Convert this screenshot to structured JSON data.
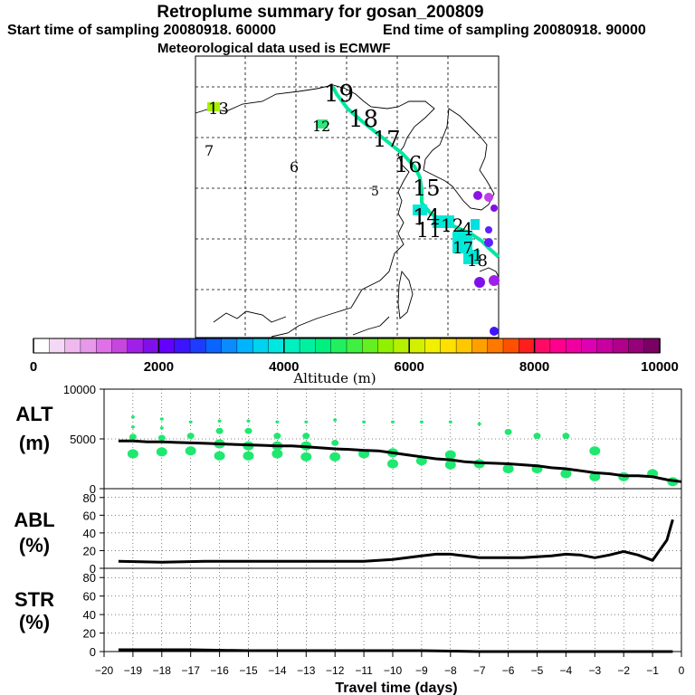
{
  "header": {
    "title": "Retroplume summary for gosan_200809",
    "start_label": "Start time of sampling 20080918. 60000",
    "end_label": "End time of sampling 20080918. 90000",
    "met_label": "Meteorological data used is ECMWF"
  },
  "colors": {
    "plume_green": "#1ee870",
    "trajectory": "#00e8a0",
    "line": "#000000"
  },
  "map": {
    "day_labels": [
      {
        "text": "19",
        "color": "#000000"
      },
      {
        "text": "18",
        "color": "#000000"
      },
      {
        "text": "17",
        "color": "#000000"
      },
      {
        "text": "16",
        "color": "#000000"
      },
      {
        "text": "15",
        "color": "#000000"
      },
      {
        "text": "14",
        "color": "#000000"
      },
      {
        "text": "11",
        "color": "#000000"
      },
      {
        "text": "12",
        "color": "#000000"
      },
      {
        "text": "4",
        "color": "#000000"
      },
      {
        "text": "1",
        "color": "#000000"
      },
      {
        "text": "17",
        "color": "#000000"
      },
      {
        "text": "18",
        "color": "#000000"
      },
      {
        "text": "13",
        "color": "#000000"
      },
      {
        "text": "12",
        "color": "#000000"
      },
      {
        "text": "7",
        "color": "#000000"
      },
      {
        "text": "6",
        "color": "#000000"
      },
      {
        "text": "5",
        "color": "#000000"
      }
    ]
  },
  "colorbar": {
    "tick_labels": [
      "0",
      "2000",
      "4000",
      "6000",
      "8000",
      "10000"
    ],
    "label": "Altitude (m)",
    "colors": [
      "#ffffff",
      "#f5d8f5",
      "#efb8ef",
      "#e898e8",
      "#e070e8",
      "#c846e0",
      "#a020e8",
      "#8010e8",
      "#6400ff",
      "#3c14ff",
      "#1e3cff",
      "#0a64ff",
      "#0a8cff",
      "#00b4ff",
      "#00d2f0",
      "#00e6e0",
      "#00f0c0",
      "#00f0a0",
      "#00f080",
      "#20f060",
      "#40f040",
      "#64f020",
      "#90f000",
      "#b4f000",
      "#d2f000",
      "#f0f000",
      "#ffe000",
      "#ffc800",
      "#ffa000",
      "#ff7800",
      "#ff5000",
      "#ff1e1e",
      "#ff0a64",
      "#ff008c",
      "#f000a0",
      "#e000b4",
      "#c800a0",
      "#b0008c",
      "#960078",
      "#7a0064"
    ]
  },
  "chart_data": [
    {
      "type": "line",
      "name": "ALT",
      "ylabel": [
        "ALT",
        "(m)"
      ],
      "ylim": [
        0,
        10000
      ],
      "yticks": [
        "10000",
        "5000",
        "0"
      ],
      "x": [
        -19.5,
        -19,
        -18.5,
        -18,
        -17.5,
        -17,
        -16.5,
        -16,
        -15.5,
        -15,
        -14.5,
        -14,
        -13.5,
        -13,
        -12.5,
        -12,
        -11.5,
        -11,
        -10.5,
        -10,
        -9.5,
        -9,
        -8.5,
        -8,
        -7.5,
        -7,
        -6.5,
        -6,
        -5.5,
        -5,
        -4.5,
        -4,
        -3.5,
        -3,
        -2.5,
        -2,
        -1.5,
        -1,
        -0.5,
        0
      ],
      "values": [
        4800,
        4800,
        4700,
        4700,
        4650,
        4600,
        4550,
        4500,
        4450,
        4400,
        4350,
        4300,
        4300,
        4200,
        4100,
        4000,
        3950,
        3850,
        3800,
        3600,
        3400,
        3200,
        3000,
        2900,
        2700,
        2600,
        2550,
        2500,
        2400,
        2300,
        2100,
        2000,
        1800,
        1600,
        1500,
        1300,
        1300,
        1200,
        900,
        700
      ],
      "plume_points": [
        {
          "x": -19,
          "y": 7200
        },
        {
          "x": -19,
          "y": 6200
        },
        {
          "x": -19,
          "y": 5200
        },
        {
          "x": -19,
          "y": 3500
        },
        {
          "x": -18,
          "y": 7000
        },
        {
          "x": -18,
          "y": 6100
        },
        {
          "x": -18,
          "y": 5100
        },
        {
          "x": -18,
          "y": 3700
        },
        {
          "x": -17,
          "y": 6700
        },
        {
          "x": -17,
          "y": 5300
        },
        {
          "x": -17,
          "y": 3800
        },
        {
          "x": -16,
          "y": 6800
        },
        {
          "x": -16,
          "y": 5800
        },
        {
          "x": -16,
          "y": 4500
        },
        {
          "x": -16,
          "y": 3300
        },
        {
          "x": -15,
          "y": 6800
        },
        {
          "x": -15,
          "y": 5800
        },
        {
          "x": -15,
          "y": 4300
        },
        {
          "x": -15,
          "y": 3300
        },
        {
          "x": -14,
          "y": 6700
        },
        {
          "x": -14,
          "y": 5300
        },
        {
          "x": -14,
          "y": 4300
        },
        {
          "x": -14,
          "y": 3500
        },
        {
          "x": -13,
          "y": 6700
        },
        {
          "x": -13,
          "y": 5300
        },
        {
          "x": -13,
          "y": 4300
        },
        {
          "x": -13,
          "y": 3200
        },
        {
          "x": -12,
          "y": 6900
        },
        {
          "x": -12,
          "y": 4600
        },
        {
          "x": -12,
          "y": 3200
        },
        {
          "x": -11,
          "y": 6700
        },
        {
          "x": -11,
          "y": 3500
        },
        {
          "x": -10,
          "y": 6700
        },
        {
          "x": -10,
          "y": 3600
        },
        {
          "x": -10,
          "y": 2500
        },
        {
          "x": -9,
          "y": 6700
        },
        {
          "x": -9,
          "y": 2800
        },
        {
          "x": -8,
          "y": 6700
        },
        {
          "x": -8,
          "y": 3400
        },
        {
          "x": -8,
          "y": 2400
        },
        {
          "x": -7,
          "y": 6500
        },
        {
          "x": -7,
          "y": 2500
        },
        {
          "x": -6,
          "y": 5700
        },
        {
          "x": -6,
          "y": 2000
        },
        {
          "x": -5,
          "y": 5300
        },
        {
          "x": -5,
          "y": 2000
        },
        {
          "x": -4,
          "y": 5300
        },
        {
          "x": -4,
          "y": 1500
        },
        {
          "x": -3,
          "y": 3800
        },
        {
          "x": -3,
          "y": 1200
        },
        {
          "x": -2,
          "y": 1200
        },
        {
          "x": -1,
          "y": 1500
        },
        {
          "x": -0.3,
          "y": 700
        }
      ]
    },
    {
      "type": "line",
      "name": "ABL",
      "ylabel": [
        "ABL",
        "(%)"
      ],
      "ylim": [
        0,
        90
      ],
      "yticks": [
        "80",
        "60",
        "40",
        "20",
        "0"
      ],
      "x": [
        -19.5,
        -18,
        -16.5,
        -15,
        -13.5,
        -12,
        -11,
        -10,
        -9.5,
        -9,
        -8.5,
        -8,
        -7.5,
        -7,
        -6.5,
        -6,
        -5.5,
        -5,
        -4.5,
        -4,
        -3.5,
        -3,
        -2.5,
        -2,
        -1.5,
        -1,
        -0.5,
        -0.3
      ],
      "values": [
        8,
        7,
        8,
        8,
        8,
        8,
        8,
        10,
        12,
        14,
        16,
        16,
        14,
        12,
        12,
        12,
        12,
        13,
        14,
        16,
        15,
        12,
        15,
        19,
        15,
        9,
        32,
        55
      ]
    },
    {
      "type": "line",
      "name": "STR",
      "ylabel": [
        "STR",
        "(%)"
      ],
      "ylim": [
        0,
        90
      ],
      "yticks": [
        "80",
        "60",
        "40",
        "20",
        "0"
      ],
      "xlabel": "Travel time (days)",
      "xticks": [
        "−20",
        "−19",
        "−18",
        "−17",
        "−16",
        "−15",
        "−14",
        "−13",
        "−12",
        "−11",
        "−10",
        "−9",
        "−8",
        "−7",
        "−6",
        "−5",
        "−4",
        "−3",
        "−2",
        "−1",
        "0"
      ],
      "xlim": [
        -20,
        0
      ],
      "x": [
        -19.5,
        -17,
        -15,
        -13,
        -11,
        -9,
        -7,
        -5,
        -3,
        -1,
        -0.3
      ],
      "values": [
        2,
        2,
        1,
        1,
        1,
        1,
        0,
        0,
        0,
        0,
        0
      ]
    }
  ]
}
